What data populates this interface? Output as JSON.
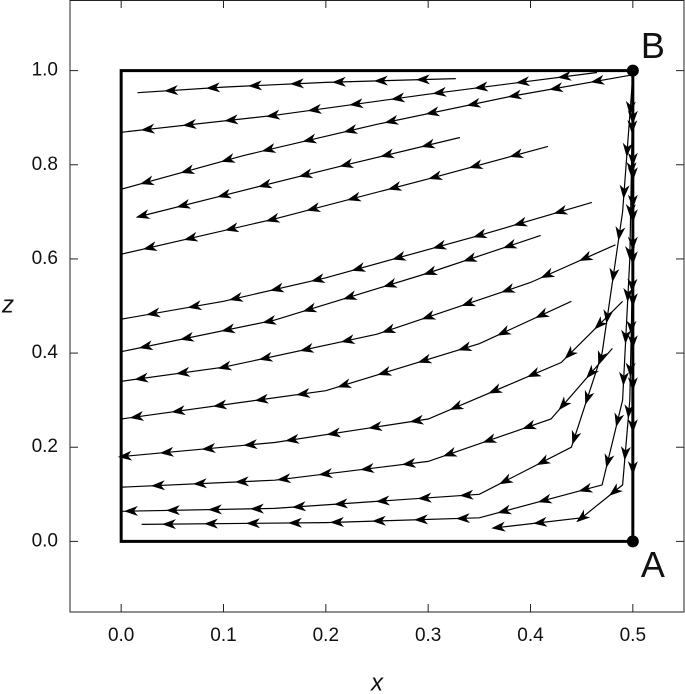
{
  "chart_data": {
    "type": "stream",
    "x_label": "x",
    "y_label": "z",
    "xlim": [
      -0.05,
      0.55
    ],
    "ylim": [
      -0.15,
      1.15
    ],
    "xticks": [
      {
        "value": 0,
        "label": "0.0"
      },
      {
        "value": 0.1,
        "label": "0.1"
      },
      {
        "value": 0.2,
        "label": "0.2"
      },
      {
        "value": 0.3,
        "label": "0.3"
      },
      {
        "value": 0.4,
        "label": "0.4"
      },
      {
        "value": 0.5,
        "label": "0.5"
      }
    ],
    "yticks": [
      {
        "value": 0,
        "label": "0.0"
      },
      {
        "value": 0.2,
        "label": "0.2"
      },
      {
        "value": 0.4,
        "label": "0.4"
      },
      {
        "value": 0.6,
        "label": "0.6"
      },
      {
        "value": 0.8,
        "label": "0.8"
      },
      {
        "value": 1,
        "label": "1.0"
      }
    ],
    "color": "#000000",
    "box": {
      "x": [
        0,
        0.5
      ],
      "z": [
        0,
        1
      ]
    },
    "points": [
      {
        "label": "A",
        "x": 0.5,
        "z": 0
      },
      {
        "label": "B",
        "x": 0.5,
        "z": 1
      }
    ],
    "series": [
      {
        "x": [
          0.327,
          0.2,
          0.1,
          0.016
        ],
        "values": [
          0.983,
          0.975,
          0.965,
          0.953
        ]
      },
      {
        "x": [
          0.465,
          0.3,
          0.15,
          0.0
        ],
        "values": [
          0.996,
          0.95,
          0.905,
          0.869
        ]
      },
      {
        "x": [
          0.497,
          0.38,
          0.25,
          0.12,
          0.0
        ],
        "values": [
          0.99,
          0.945,
          0.886,
          0.82,
          0.748
        ]
      },
      {
        "x": [
          0.331,
          0.22,
          0.1,
          0.016
        ],
        "values": [
          0.858,
          0.8,
          0.735,
          0.689
        ]
      },
      {
        "x": [
          0.417,
          0.3,
          0.15,
          0.0
        ],
        "values": [
          0.839,
          0.77,
          0.685,
          0.61
        ]
      },
      {
        "x": [
          0.46,
          0.35,
          0.2,
          0.1,
          0.0
        ],
        "values": [
          0.72,
          0.65,
          0.56,
          0.51,
          0.472
        ]
      },
      {
        "x": [
          0.41,
          0.3,
          0.15,
          0.0
        ],
        "values": [
          0.65,
          0.57,
          0.47,
          0.403
        ]
      },
      {
        "x": [
          0.483,
          0.4,
          0.25,
          0.1,
          0.0
        ],
        "values": [
          0.63,
          0.55,
          0.44,
          0.37,
          0.34
        ]
      },
      {
        "x": [
          0.44,
          0.35,
          0.2,
          0.0
        ],
        "values": [
          0.51,
          0.42,
          0.32,
          0.26
        ]
      },
      {
        "x": [
          0.49,
          0.43,
          0.3,
          0.15,
          0.0
        ],
        "values": [
          0.51,
          0.38,
          0.26,
          0.21,
          0.18
        ]
      },
      {
        "x": [
          0.48,
          0.42,
          0.3,
          0.15,
          0.0
        ],
        "values": [
          0.41,
          0.26,
          0.17,
          0.13,
          0.115
        ]
      },
      {
        "x": [
          0.5,
          0.49,
          0.47,
          0.44,
          0.35,
          0.15,
          0.0
        ],
        "values": [
          0.99,
          0.7,
          0.4,
          0.2,
          0.1,
          0.07,
          0.064
        ]
      },
      {
        "x": [
          0.5,
          0.497,
          0.49,
          0.47,
          0.35,
          0.2,
          0.02
        ],
        "values": [
          0.95,
          0.6,
          0.3,
          0.12,
          0.05,
          0.04,
          0.036
        ]
      },
      {
        "x": [
          0.5,
          0.5,
          0.497,
          0.49,
          0.45,
          0.37
        ],
        "values": [
          0.97,
          0.6,
          0.3,
          0.12,
          0.05,
          0.03
        ]
      },
      {
        "x": [
          0.5,
          0.5,
          0.5
        ],
        "values": [
          0.85,
          0.4,
          0.1
        ]
      }
    ]
  }
}
